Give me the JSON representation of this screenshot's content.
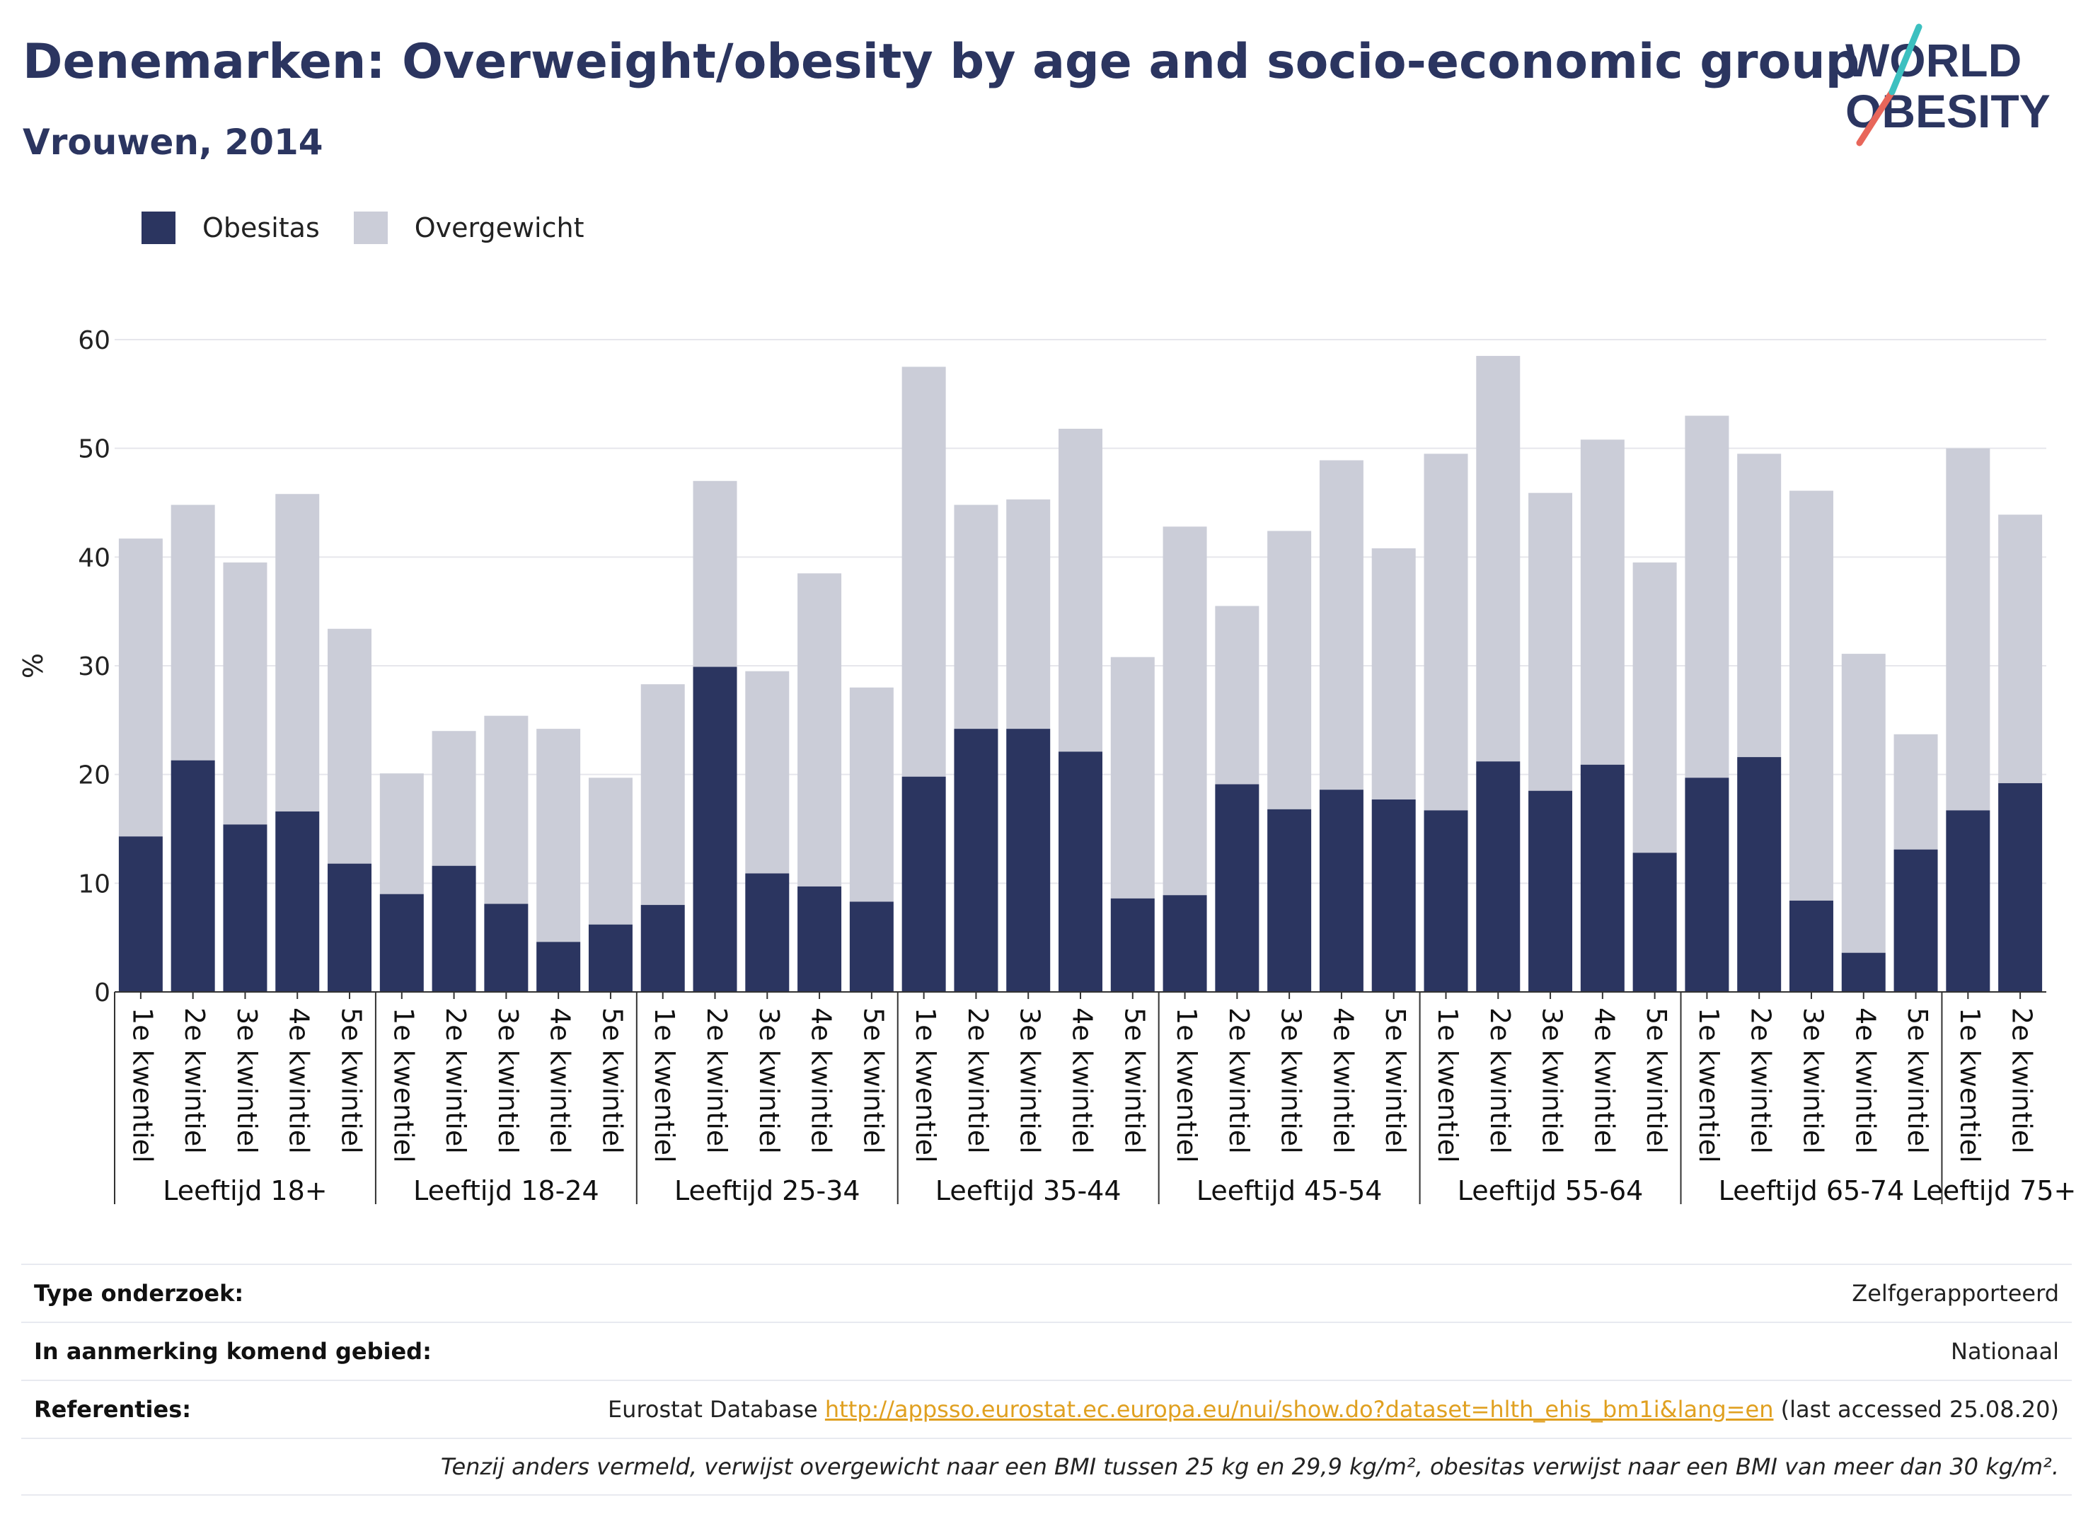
{
  "header": {
    "title": "Denemarken: Overweight/obesity by age and socio-economic group",
    "subtitle": "Vrouwen, 2014"
  },
  "logo": {
    "line1": "WORLD",
    "line2": "OBESITY"
  },
  "colors": {
    "obesity": "#2b3560",
    "overweight": "#cbcdd8",
    "title": "#2b3560",
    "accent_red": "#e8665a",
    "accent_teal": "#3cc0c0"
  },
  "legend": [
    {
      "label": "Obesitas",
      "color": "#2b3560"
    },
    {
      "label": "Overgewicht",
      "color": "#cbcdd8"
    }
  ],
  "chart_data": {
    "type": "bar",
    "stacked": true,
    "ylabel": "%",
    "ylim": [
      0,
      60
    ],
    "yticks": [
      0,
      10,
      20,
      30,
      40,
      50,
      60
    ],
    "grid": true,
    "legend_position": "top-left",
    "groups": [
      {
        "name": "Leeftijd 18+",
        "categories": [
          "1e kwentiel",
          "2e kwintiel",
          "3e kwintiel",
          "4e kwintiel",
          "5e kwintiel"
        ],
        "obesitas": [
          14.3,
          21.3,
          15.4,
          16.6,
          11.8
        ],
        "total": [
          41.7,
          44.8,
          39.5,
          45.8,
          33.4
        ]
      },
      {
        "name": "Leeftijd 18-24",
        "categories": [
          "1e kwentiel",
          "2e kwintiel",
          "3e kwintiel",
          "4e kwintiel",
          "5e kwintiel"
        ],
        "obesitas": [
          9.0,
          11.6,
          8.1,
          4.6,
          6.2
        ],
        "total": [
          20.1,
          24.0,
          25.4,
          24.2,
          19.7
        ]
      },
      {
        "name": "Leeftijd 25-34",
        "categories": [
          "1e kwentiel",
          "2e kwintiel",
          "3e kwintiel",
          "4e kwintiel",
          "5e kwintiel"
        ],
        "obesitas": [
          8.0,
          29.9,
          10.9,
          9.7,
          8.3
        ],
        "total": [
          28.3,
          47.0,
          29.5,
          38.5,
          28.0
        ]
      },
      {
        "name": "Leeftijd 35-44",
        "categories": [
          "1e kwentiel",
          "2e kwintiel",
          "3e kwintiel",
          "4e kwintiel",
          "5e kwintiel"
        ],
        "obesitas": [
          19.8,
          24.2,
          24.2,
          22.1,
          8.6
        ],
        "total": [
          57.5,
          44.8,
          45.3,
          51.8,
          30.8
        ]
      },
      {
        "name": "Leeftijd 45-54",
        "categories": [
          "1e kwentiel",
          "2e kwintiel",
          "3e kwintiel",
          "4e kwintiel",
          "5e kwintiel"
        ],
        "obesitas": [
          8.9,
          19.1,
          16.8,
          18.6,
          17.7
        ],
        "total": [
          42.8,
          35.5,
          42.4,
          48.9,
          40.8
        ]
      },
      {
        "name": "Leeftijd 55-64",
        "categories": [
          "1e kwentiel",
          "2e kwintiel",
          "3e kwintiel",
          "4e kwintiel",
          "5e kwintiel"
        ],
        "obesitas": [
          16.7,
          21.2,
          18.5,
          20.9,
          12.8
        ],
        "total": [
          49.5,
          58.5,
          45.9,
          50.8,
          39.5
        ]
      },
      {
        "name": "Leeftijd 65-74",
        "categories": [
          "1e kwentiel",
          "2e kwintiel",
          "3e kwintiel",
          "4e kwintiel",
          "5e kwintiel"
        ],
        "obesitas": [
          19.7,
          21.6,
          8.4,
          3.6,
          13.1
        ],
        "total": [
          53.0,
          49.5,
          46.1,
          31.1,
          23.7
        ]
      },
      {
        "name": "Leeftijd 75+",
        "categories": [
          "1e kwentiel",
          "2e kwintiel"
        ],
        "obesitas": [
          16.7,
          19.2
        ],
        "total": [
          50.0,
          43.9
        ]
      }
    ]
  },
  "info_table": {
    "type_label": "Type onderzoek:",
    "type_value": "Zelfgerapporteerd",
    "area_label": "In aanmerking komend gebied:",
    "area_value": "Nationaal",
    "ref_label": "Referenties:",
    "ref_prefix": "Eurostat Database ",
    "ref_link": "http://appsso.eurostat.ec.europa.eu/nui/show.do?dataset=hlth_ehis_bm1i&lang=en",
    "ref_suffix": " (last accessed 25.08.20)",
    "footnote": "Tenzij anders vermeld, verwijst overgewicht naar een BMI tussen 25 kg en 29,9 kg/m², obesitas verwijst naar een BMI van meer dan 30 kg/m²."
  }
}
